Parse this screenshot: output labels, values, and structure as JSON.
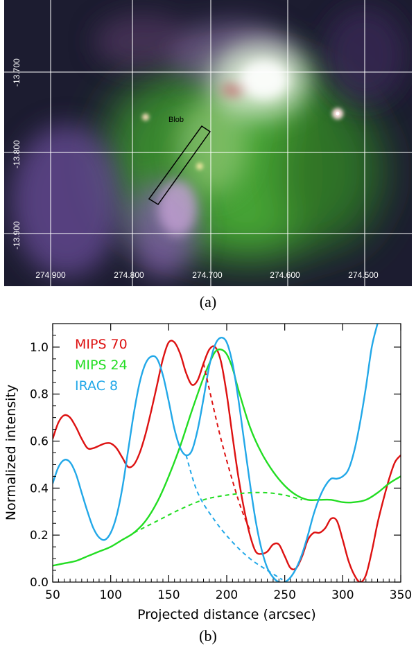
{
  "panel_a": {
    "caption": "(a)",
    "blob_label": "Blob",
    "dec_labels": [
      "-13.700",
      "-13.800",
      "-13.900"
    ],
    "ra_labels": [
      "274.900",
      "274.800",
      "274.700",
      "274.600",
      "274.500"
    ]
  },
  "panel_b": {
    "caption": "(b)"
  },
  "chart_data": {
    "type": "line",
    "xlabel": "Projected distance (arcsec)",
    "ylabel": "Normalized intensity",
    "xlim": [
      50,
      350
    ],
    "ylim": [
      0.0,
      1.1
    ],
    "xticks": [
      50,
      100,
      150,
      200,
      250,
      300,
      350
    ],
    "yticks": [
      "0.0",
      "0.2",
      "0.4",
      "0.6",
      "0.8",
      "1.0"
    ],
    "legend_position": "top-left",
    "series": [
      {
        "name": "MIPS 70",
        "color": "#dd1111",
        "x": [
          50,
          55,
          60,
          65,
          70,
          75,
          80,
          85,
          90,
          95,
          100,
          105,
          110,
          115,
          120,
          125,
          130,
          135,
          140,
          145,
          150,
          155,
          160,
          165,
          170,
          175,
          180,
          185,
          190,
          195,
          200,
          205,
          210,
          215,
          220,
          225,
          230,
          235,
          240,
          245,
          250,
          255,
          260,
          265,
          270,
          275,
          280,
          285,
          290,
          295,
          300,
          305,
          310,
          315,
          320,
          325,
          330,
          335,
          340,
          345,
          350
        ],
        "values": [
          0.61,
          0.68,
          0.71,
          0.7,
          0.66,
          0.61,
          0.57,
          0.57,
          0.58,
          0.59,
          0.59,
          0.57,
          0.53,
          0.49,
          0.5,
          0.55,
          0.63,
          0.73,
          0.84,
          0.95,
          1.02,
          1.02,
          0.97,
          0.89,
          0.84,
          0.86,
          0.93,
          0.99,
          1.0,
          0.94,
          0.8,
          0.62,
          0.45,
          0.31,
          0.2,
          0.13,
          0.12,
          0.13,
          0.16,
          0.16,
          0.11,
          0.06,
          0.06,
          0.11,
          0.18,
          0.21,
          0.21,
          0.23,
          0.27,
          0.26,
          0.18,
          0.09,
          0.03,
          0.0,
          0.03,
          0.13,
          0.25,
          0.35,
          0.44,
          0.51,
          0.54
        ]
      },
      {
        "name": "MIPS 24",
        "color": "#22dd22",
        "x": [
          50,
          60,
          70,
          80,
          90,
          100,
          110,
          120,
          130,
          140,
          150,
          160,
          170,
          180,
          185,
          190,
          195,
          200,
          205,
          210,
          220,
          230,
          240,
          250,
          260,
          270,
          280,
          290,
          300,
          310,
          320,
          330,
          340,
          350
        ],
        "values": [
          0.07,
          0.08,
          0.09,
          0.11,
          0.13,
          0.15,
          0.18,
          0.21,
          0.26,
          0.34,
          0.45,
          0.58,
          0.73,
          0.87,
          0.93,
          0.98,
          0.99,
          0.97,
          0.91,
          0.82,
          0.66,
          0.55,
          0.47,
          0.41,
          0.37,
          0.35,
          0.35,
          0.35,
          0.34,
          0.34,
          0.35,
          0.38,
          0.42,
          0.45
        ]
      },
      {
        "name": "IRAC 8",
        "color": "#22a8e8",
        "x": [
          50,
          55,
          60,
          65,
          70,
          75,
          80,
          85,
          90,
          95,
          100,
          105,
          110,
          115,
          120,
          125,
          130,
          135,
          140,
          145,
          150,
          155,
          160,
          165,
          170,
          175,
          180,
          185,
          190,
          195,
          200,
          205,
          210,
          215,
          220,
          225,
          230,
          235,
          240,
          245,
          250,
          255,
          260,
          265,
          270,
          275,
          280,
          285,
          290,
          295,
          300,
          305,
          310,
          315,
          320,
          325,
          330
        ],
        "values": [
          0.42,
          0.49,
          0.52,
          0.51,
          0.46,
          0.38,
          0.3,
          0.23,
          0.19,
          0.18,
          0.21,
          0.28,
          0.4,
          0.56,
          0.72,
          0.85,
          0.93,
          0.96,
          0.95,
          0.88,
          0.77,
          0.65,
          0.57,
          0.54,
          0.56,
          0.65,
          0.78,
          0.92,
          1.01,
          1.04,
          1.02,
          0.93,
          0.78,
          0.6,
          0.42,
          0.26,
          0.14,
          0.06,
          0.02,
          0.0,
          0.0,
          0.02,
          0.06,
          0.12,
          0.2,
          0.29,
          0.36,
          0.41,
          0.44,
          0.44,
          0.45,
          0.48,
          0.56,
          0.68,
          0.83,
          1.0,
          1.1
        ]
      },
      {
        "name": "",
        "color": "#dd1111",
        "dashed": true,
        "x": [
          180,
          195,
          210,
          220
        ],
        "values": [
          0.93,
          0.61,
          0.35,
          0.22
        ]
      },
      {
        "name": "",
        "color": "#22dd22",
        "dashed": true,
        "x": [
          120,
          140,
          160,
          180,
          200,
          220,
          235,
          250,
          265
        ],
        "values": [
          0.21,
          0.26,
          0.31,
          0.35,
          0.37,
          0.38,
          0.38,
          0.37,
          0.35
        ]
      },
      {
        "name": "",
        "color": "#22a8e8",
        "dashed": true,
        "x": [
          165,
          175,
          190,
          205,
          220,
          235,
          248
        ],
        "values": [
          0.54,
          0.38,
          0.26,
          0.17,
          0.1,
          0.05,
          0.01
        ]
      }
    ]
  }
}
